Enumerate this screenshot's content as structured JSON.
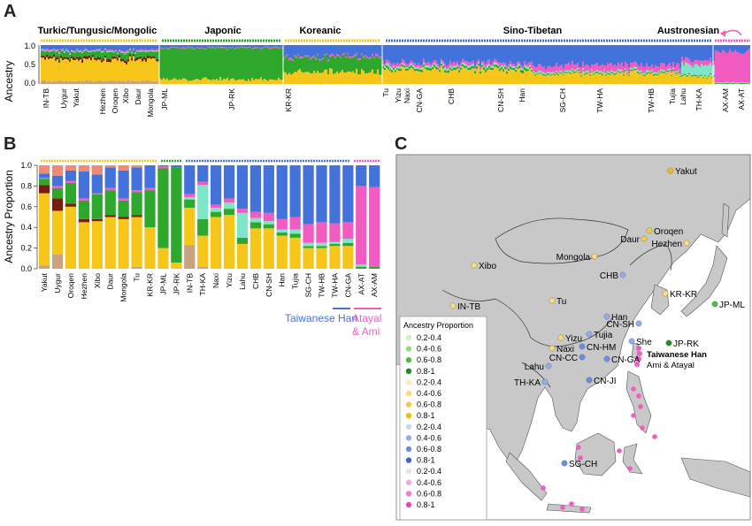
{
  "panels": {
    "a": {
      "letter": "A"
    },
    "b": {
      "letter": "B"
    },
    "c": {
      "letter": "C"
    }
  },
  "colors": {
    "yellow": "#f6c71a",
    "green": "#2ea82c",
    "blue": "#4472db",
    "pink": "#f25cc2",
    "cyan": "#7de5c8",
    "darkred": "#7a1c10",
    "salmon": "#f08a76",
    "tan": "#c9a27e",
    "map_land": "#c8c8c8",
    "map_ocean": "#ffffff"
  },
  "chart_data": [
    {
      "type": "bar",
      "panel": "A",
      "ylabel": "Ancestry",
      "ylim": [
        0,
        1
      ],
      "yticks": [
        "1.0",
        "0.5",
        "0.0"
      ],
      "groups": [
        {
          "name": "Turkic/Tungusic/Mongolic",
          "color": "#f6c71a"
        },
        {
          "name": "Japonic",
          "color": "#2ea82c"
        },
        {
          "name": "Koreanic",
          "color": "#f6c71a"
        },
        {
          "name": "Sino-Tibetan",
          "color": "#4472db"
        },
        {
          "name": "Austronesian",
          "color": "#f25cc2"
        }
      ],
      "xtick_labels": [
        "IN-TB",
        "Uygur",
        "Yakut",
        "Hezhen",
        "Oroqen",
        "Xibo",
        "Daur",
        "Mongola",
        "JP-ML",
        "JP-RK",
        "KR-KR",
        "Tu",
        "Yizu",
        "Naxi",
        "CN-GA",
        "CHB",
        "CN-SH",
        "Han",
        "SG-CH",
        "TW-HA",
        "TW-HB",
        "Tujia",
        "Lahu",
        "TH-KA",
        "AX-AM",
        "AX-AT"
      ]
    },
    {
      "type": "bar",
      "panel": "B",
      "ylabel": "Ancestry Proportion",
      "ylim": [
        0,
        1
      ],
      "yticks": [
        "1.0",
        "0.8",
        "0.6",
        "0.4",
        "0.2",
        "0.0"
      ],
      "components": [
        "tan",
        "yellow",
        "darkred",
        "green",
        "cyan",
        "pink",
        "blue",
        "salmon"
      ],
      "categories": [
        "Yakut",
        "Uygur",
        "Oroqen",
        "Hezhen",
        "Xibo",
        "Daur",
        "Mongola",
        "Tu",
        "KR-KR",
        "JP-ML",
        "JP-RK",
        "IN-TB",
        "TH-KA",
        "Naxi",
        "Yizu",
        "Lahu",
        "CHB",
        "CN-SH",
        "Han",
        "Tujia",
        "SG-CH",
        "TW-HB",
        "TW-HA",
        "CN-GA",
        "AX-AT",
        "AX-AM"
      ],
      "series": [
        {
          "name": "tan",
          "values": [
            0.03,
            0.14,
            0.0,
            0.0,
            0.0,
            0.0,
            0.0,
            0.02,
            0.0,
            0.0,
            0.0,
            0.23,
            0.02,
            0.0,
            0.0,
            0.0,
            0.0,
            0.0,
            0.0,
            0.0,
            0.0,
            0.0,
            0.0,
            0.0,
            0.0,
            0.0
          ]
        },
        {
          "name": "yellow",
          "values": [
            0.7,
            0.42,
            0.6,
            0.45,
            0.46,
            0.5,
            0.48,
            0.48,
            0.4,
            0.2,
            0.06,
            0.36,
            0.3,
            0.5,
            0.52,
            0.24,
            0.39,
            0.39,
            0.32,
            0.3,
            0.2,
            0.2,
            0.22,
            0.22,
            0.0,
            0.0
          ]
        },
        {
          "name": "darkred",
          "values": [
            0.08,
            0.12,
            0.03,
            0.03,
            0.02,
            0.02,
            0.02,
            0.02,
            0.0,
            0.0,
            0.0,
            0.0,
            0.0,
            0.0,
            0.0,
            0.0,
            0.0,
            0.0,
            0.0,
            0.0,
            0.0,
            0.0,
            0.0,
            0.0,
            0.0,
            0.0
          ]
        },
        {
          "name": "green",
          "values": [
            0.06,
            0.1,
            0.2,
            0.18,
            0.24,
            0.24,
            0.16,
            0.22,
            0.36,
            0.77,
            0.92,
            0.08,
            0.16,
            0.05,
            0.06,
            0.06,
            0.06,
            0.04,
            0.03,
            0.04,
            0.02,
            0.02,
            0.02,
            0.03,
            0.02,
            0.02
          ]
        },
        {
          "name": "cyan",
          "values": [
            0.0,
            0.0,
            0.0,
            0.0,
            0.0,
            0.0,
            0.0,
            0.0,
            0.0,
            0.0,
            0.0,
            0.02,
            0.33,
            0.04,
            0.06,
            0.24,
            0.04,
            0.03,
            0.03,
            0.04,
            0.03,
            0.03,
            0.02,
            0.04,
            0.02,
            0.0
          ]
        },
        {
          "name": "pink",
          "values": [
            0.01,
            0.02,
            0.02,
            0.02,
            0.01,
            0.02,
            0.02,
            0.02,
            0.02,
            0.02,
            0.0,
            0.03,
            0.03,
            0.03,
            0.04,
            0.04,
            0.06,
            0.08,
            0.1,
            0.12,
            0.18,
            0.2,
            0.18,
            0.16,
            0.76,
            0.77
          ]
        },
        {
          "name": "blue",
          "values": [
            0.04,
            0.1,
            0.1,
            0.26,
            0.18,
            0.2,
            0.27,
            0.22,
            0.22,
            0.01,
            0.02,
            0.28,
            0.16,
            0.38,
            0.32,
            0.42,
            0.45,
            0.46,
            0.52,
            0.5,
            0.57,
            0.55,
            0.56,
            0.55,
            0.2,
            0.21
          ]
        },
        {
          "name": "salmon",
          "values": [
            0.08,
            0.1,
            0.05,
            0.06,
            0.09,
            0.02,
            0.05,
            0.02,
            0.0,
            0.0,
            0.0,
            0.0,
            0.0,
            0.0,
            0.0,
            0.0,
            0.0,
            0.0,
            0.0,
            0.0,
            0.0,
            0.0,
            0.0,
            0.0,
            0.0,
            0.0
          ]
        }
      ],
      "group_annotations": [
        {
          "label": "Taiwanese Han",
          "color": "#4472db"
        },
        {
          "label_line1": "Atayal",
          "label_line2": "& Ami",
          "color": "#f25cc2"
        }
      ]
    },
    {
      "type": "map",
      "panel": "C",
      "legend_title": "Ancestry Proportion",
      "legend_items": [
        {
          "label": "0.2-0.4",
          "color": "#d2f0c8"
        },
        {
          "label": "0.4-0.6",
          "color": "#8fe07c"
        },
        {
          "label": "0.6-0.8",
          "color": "#4bbf41"
        },
        {
          "label": "0.8-1",
          "color": "#1f8c1e"
        },
        {
          "label": "0.2-0.4",
          "color": "#fbedb8"
        },
        {
          "label": "0.4-0.6",
          "color": "#f8dc7a"
        },
        {
          "label": "0.6-0.8",
          "color": "#f6cd3e"
        },
        {
          "label": "0.8-1",
          "color": "#f2bc10"
        },
        {
          "label": "0.2-0.4",
          "color": "#c9d5f4"
        },
        {
          "label": "0.4-0.6",
          "color": "#93acee"
        },
        {
          "label": "0.6-0.8",
          "color": "#6a8ee4"
        },
        {
          "label": "0.8-1",
          "color": "#3e64d4"
        },
        {
          "label": "0.2-0.4",
          "color": "#fbd6ef"
        },
        {
          "label": "0.4-0.6",
          "color": "#f7a8de"
        },
        {
          "label": "0.6-0.8",
          "color": "#f47ccd"
        },
        {
          "label": "0.8-1",
          "color": "#ee46b6"
        }
      ],
      "sites": [
        {
          "name": "Yakut",
          "color": "#f2bc10"
        },
        {
          "name": "Oroqen",
          "color": "#f6cd3e"
        },
        {
          "name": "Daur",
          "color": "#f6cd3e"
        },
        {
          "name": "Hezhen",
          "color": "#f8dc7a"
        },
        {
          "name": "Mongola",
          "color": "#f8dc7a"
        },
        {
          "name": "Xibo",
          "color": "#f8dc7a"
        },
        {
          "name": "CHB",
          "color": "#93acee"
        },
        {
          "name": "KR-KR",
          "color": "#f8dc7a"
        },
        {
          "name": "JP-ML",
          "color": "#4bbf41"
        },
        {
          "name": "IN-TB",
          "color": "#f8dc7a"
        },
        {
          "name": "Tu",
          "color": "#f8dc7a"
        },
        {
          "name": "Han",
          "color": "#93acee"
        },
        {
          "name": "CN-SH",
          "color": "#93acee"
        },
        {
          "name": "JP-RK",
          "color": "#1f8c1e"
        },
        {
          "name": "Tujia",
          "color": "#93acee"
        },
        {
          "name": "Yizu",
          "color": "#f8dc7a"
        },
        {
          "name": "CN-HM",
          "color": "#6a8ee4"
        },
        {
          "name": "She",
          "color": "#93acee"
        },
        {
          "name": "Naxi",
          "color": "#f8dc7a"
        },
        {
          "name": "CN-CC",
          "color": "#6a8ee4"
        },
        {
          "name": "CN-GA",
          "color": "#6a8ee4"
        },
        {
          "name": "Lahu",
          "color": "#93acee"
        },
        {
          "name": "TH-KA",
          "color": "#93acee"
        },
        {
          "name": "CN-JI",
          "color": "#6a8ee4"
        },
        {
          "name": "SG-CH",
          "color": "#6a8ee4"
        }
      ],
      "annotations": [
        "Taiwanese Han",
        "Ami & Atayal"
      ]
    }
  ]
}
